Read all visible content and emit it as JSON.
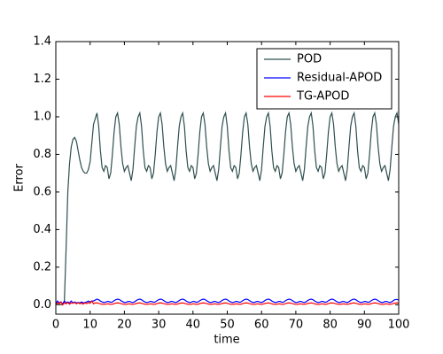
{
  "chart_data": {
    "type": "line",
    "xlabel": "time",
    "ylabel": "Error",
    "xlim": [
      0,
      100
    ],
    "xticks": [
      0,
      10,
      20,
      30,
      40,
      50,
      60,
      70,
      80,
      90,
      100
    ],
    "ylim": [
      -0.05,
      1.4
    ],
    "yticks": [
      {
        "value": 0,
        "label": "0.0"
      },
      0.2,
      0.4,
      0.6,
      0.8,
      {
        "value": 1,
        "label": "1.0"
      },
      1.2,
      1.4
    ],
    "legend": "upper right",
    "x": [
      0,
      0.5,
      1,
      1.5,
      2,
      2.5,
      3,
      3.5,
      4,
      4.5,
      5,
      5.5,
      6,
      6.5,
      7,
      7.5,
      8,
      8.5,
      9,
      9.5,
      10,
      10.5,
      11,
      11.5,
      12,
      12.5,
      13,
      13.5,
      14,
      14.5,
      15,
      15.5,
      16,
      16.5,
      17,
      17.5,
      18,
      18.5,
      19,
      19.5,
      20,
      20.5,
      21,
      21.5,
      22,
      22.5,
      23,
      23.5,
      24,
      24.5,
      25,
      25.5,
      26,
      26.5,
      27,
      27.5,
      28,
      28.5,
      29,
      29.5,
      30,
      30.5,
      31,
      31.5,
      32,
      32.5,
      33,
      33.5,
      34,
      34.5,
      35,
      35.5,
      36,
      36.5,
      37,
      37.5,
      38,
      38.5,
      39,
      39.5,
      40,
      40.5,
      41,
      41.5,
      42,
      42.5,
      43,
      43.5,
      44,
      44.5,
      45,
      45.5,
      46,
      46.5,
      47,
      47.5,
      48,
      48.5,
      49,
      49.5,
      50,
      50.5,
      51,
      51.5,
      52,
      52.5,
      53,
      53.5,
      54,
      54.5,
      55,
      55.5,
      56,
      56.5,
      57,
      57.5,
      58,
      58.5,
      59,
      59.5,
      60,
      60.5,
      61,
      61.5,
      62,
      62.5,
      63,
      63.5,
      64,
      64.5,
      65,
      65.5,
      66,
      66.5,
      67,
      67.5,
      68,
      68.5,
      69,
      69.5,
      70,
      70.5,
      71,
      71.5,
      72,
      72.5,
      73,
      73.5,
      74,
      74.5,
      75,
      75.5,
      76,
      76.5,
      77,
      77.5,
      78,
      78.5,
      79,
      79.5,
      80,
      80.5,
      81,
      81.5,
      82,
      82.5,
      83,
      83.5,
      84,
      84.5,
      85,
      85.5,
      86,
      86.5,
      87,
      87.5,
      88,
      88.5,
      89,
      89.5,
      90,
      90.5,
      91,
      91.5,
      92,
      92.5,
      93,
      93.5,
      94,
      94.5,
      95,
      95.5,
      96,
      96.5,
      97,
      97.5,
      98,
      98.5,
      99,
      99.5,
      100
    ],
    "series": [
      {
        "name": "POD",
        "color": "#2f4f4f",
        "values": [
          0,
          0,
          0,
          0,
          0,
          0.02,
          0.3,
          0.6,
          0.75,
          0.84,
          0.88,
          0.89,
          0.87,
          0.82,
          0.77,
          0.73,
          0.71,
          0.7,
          0.7,
          0.72,
          0.76,
          0.86,
          0.96,
          0.99,
          1.02,
          0.95,
          0.82,
          0.73,
          0.71,
          0.74,
          0.73,
          0.67,
          0.7,
          0.8,
          0.92,
          1.0,
          1.02,
          0.96,
          0.84,
          0.75,
          0.71,
          0.73,
          0.74,
          0.7,
          0.66,
          0.72,
          0.84,
          0.95,
          1.0,
          1.02,
          0.95,
          0.82,
          0.73,
          0.71,
          0.74,
          0.73,
          0.67,
          0.7,
          0.8,
          0.92,
          1.0,
          1.02,
          0.96,
          0.84,
          0.75,
          0.71,
          0.73,
          0.74,
          0.7,
          0.66,
          0.72,
          0.84,
          0.95,
          1.0,
          1.02,
          0.95,
          0.82,
          0.73,
          0.71,
          0.74,
          0.73,
          0.67,
          0.7,
          0.8,
          0.92,
          1.0,
          1.02,
          0.96,
          0.84,
          0.75,
          0.71,
          0.73,
          0.74,
          0.7,
          0.66,
          0.72,
          0.84,
          0.95,
          1.0,
          1.02,
          0.95,
          0.82,
          0.73,
          0.71,
          0.74,
          0.73,
          0.67,
          0.7,
          0.8,
          0.92,
          1.0,
          1.02,
          0.96,
          0.84,
          0.75,
          0.71,
          0.73,
          0.74,
          0.7,
          0.66,
          0.72,
          0.84,
          0.95,
          1.0,
          1.02,
          0.95,
          0.82,
          0.73,
          0.71,
          0.74,
          0.73,
          0.67,
          0.7,
          0.8,
          0.92,
          1.0,
          1.02,
          0.96,
          0.84,
          0.75,
          0.71,
          0.73,
          0.74,
          0.7,
          0.66,
          0.72,
          0.84,
          0.95,
          1.0,
          1.02,
          0.95,
          0.82,
          0.73,
          0.71,
          0.74,
          0.73,
          0.67,
          0.7,
          0.8,
          0.92,
          1.0,
          1.02,
          0.96,
          0.84,
          0.75,
          0.71,
          0.73,
          0.74,
          0.7,
          0.66,
          0.72,
          0.84,
          0.95,
          1.0,
          1.02,
          0.95,
          0.82,
          0.73,
          0.71,
          0.74,
          0.73,
          0.67,
          0.7,
          0.8,
          0.92,
          1.0,
          1.02,
          0.96,
          0.84,
          0.75,
          0.71,
          0.73,
          0.74,
          0.7,
          0.66,
          0.72,
          0.84,
          0.95,
          1.0,
          1.02,
          0.96
        ]
      },
      {
        "name": "Residual-APOD",
        "color": "#0000ff",
        "values": [
          0.005,
          0.02,
          0.01,
          0.015,
          0.005,
          0.02,
          0.01,
          0.015,
          0.01,
          0.02,
          0.01,
          0.015,
          0.01,
          0.012,
          0.01,
          0.015,
          0.01,
          0.012,
          0.015,
          0.02,
          0.015,
          0.02,
          0.02,
          0.025,
          0.03,
          0.027,
          0.02,
          0.015,
          0.012,
          0.014,
          0.018,
          0.017,
          0.013,
          0.015,
          0.022,
          0.027,
          0.03,
          0.028,
          0.022,
          0.016,
          0.012,
          0.013,
          0.017,
          0.018,
          0.014,
          0.012,
          0.016,
          0.023,
          0.028,
          0.03,
          0.027,
          0.02,
          0.015,
          0.012,
          0.014,
          0.018,
          0.017,
          0.013,
          0.015,
          0.022,
          0.027,
          0.03,
          0.028,
          0.022,
          0.016,
          0.012,
          0.013,
          0.017,
          0.018,
          0.014,
          0.012,
          0.016,
          0.023,
          0.028,
          0.03,
          0.027,
          0.02,
          0.015,
          0.012,
          0.014,
          0.018,
          0.017,
          0.013,
          0.015,
          0.022,
          0.027,
          0.03,
          0.028,
          0.022,
          0.016,
          0.012,
          0.013,
          0.017,
          0.018,
          0.014,
          0.012,
          0.016,
          0.023,
          0.028,
          0.03,
          0.027,
          0.02,
          0.015,
          0.012,
          0.014,
          0.018,
          0.017,
          0.013,
          0.015,
          0.022,
          0.027,
          0.03,
          0.028,
          0.022,
          0.016,
          0.012,
          0.013,
          0.017,
          0.018,
          0.014,
          0.012,
          0.016,
          0.023,
          0.028,
          0.03,
          0.027,
          0.02,
          0.015,
          0.012,
          0.014,
          0.018,
          0.017,
          0.013,
          0.015,
          0.022,
          0.027,
          0.03,
          0.028,
          0.022,
          0.016,
          0.012,
          0.013,
          0.017,
          0.018,
          0.014,
          0.012,
          0.016,
          0.023,
          0.028,
          0.03,
          0.027,
          0.02,
          0.015,
          0.012,
          0.014,
          0.018,
          0.017,
          0.013,
          0.015,
          0.022,
          0.027,
          0.03,
          0.028,
          0.022,
          0.016,
          0.012,
          0.013,
          0.017,
          0.018,
          0.014,
          0.012,
          0.016,
          0.023,
          0.028,
          0.03,
          0.027,
          0.02,
          0.015,
          0.012,
          0.014,
          0.018,
          0.017,
          0.013,
          0.015,
          0.022,
          0.027,
          0.03,
          0.028,
          0.022,
          0.016,
          0.012,
          0.013,
          0.017,
          0.018,
          0.014,
          0.012,
          0.016,
          0.023,
          0.028,
          0.028,
          0.026
        ]
      },
      {
        "name": "TG-APOD",
        "color": "#ff0000",
        "values": [
          0,
          0.01,
          0.005,
          0.015,
          0,
          0.01,
          0.005,
          0.012,
          0.003,
          0.01,
          0.008,
          0.012,
          0.005,
          0.01,
          0.006,
          0.008,
          0.004,
          0.01,
          0.006,
          0.012,
          0.008,
          0.02,
          0.005,
          0.01,
          0.01,
          0.008,
          0.005,
          0.003,
          0.002,
          0.003,
          0.005,
          0.004,
          0.002,
          0.003,
          0.006,
          0.009,
          0.01,
          0.009,
          0.006,
          0.004,
          0.002,
          0.002,
          0.004,
          0.005,
          0.003,
          0.002,
          0.004,
          0.007,
          0.009,
          0.01,
          0.008,
          0.005,
          0.003,
          0.002,
          0.003,
          0.005,
          0.004,
          0.002,
          0.003,
          0.006,
          0.009,
          0.01,
          0.009,
          0.006,
          0.004,
          0.002,
          0.002,
          0.004,
          0.005,
          0.003,
          0.002,
          0.004,
          0.007,
          0.009,
          0.01,
          0.008,
          0.005,
          0.003,
          0.002,
          0.003,
          0.005,
          0.004,
          0.002,
          0.003,
          0.006,
          0.009,
          0.01,
          0.009,
          0.006,
          0.004,
          0.002,
          0.002,
          0.004,
          0.005,
          0.003,
          0.002,
          0.004,
          0.007,
          0.009,
          0.01,
          0.008,
          0.005,
          0.003,
          0.002,
          0.003,
          0.005,
          0.004,
          0.002,
          0.003,
          0.006,
          0.009,
          0.01,
          0.009,
          0.006,
          0.004,
          0.002,
          0.002,
          0.004,
          0.005,
          0.003,
          0.002,
          0.004,
          0.007,
          0.009,
          0.01,
          0.008,
          0.005,
          0.003,
          0.002,
          0.003,
          0.005,
          0.004,
          0.002,
          0.003,
          0.006,
          0.009,
          0.01,
          0.009,
          0.006,
          0.004,
          0.002,
          0.002,
          0.004,
          0.005,
          0.003,
          0.002,
          0.004,
          0.007,
          0.009,
          0.01,
          0.008,
          0.005,
          0.003,
          0.002,
          0.003,
          0.005,
          0.004,
          0.002,
          0.003,
          0.006,
          0.009,
          0.01,
          0.009,
          0.006,
          0.004,
          0.002,
          0.002,
          0.004,
          0.005,
          0.003,
          0.002,
          0.004,
          0.007,
          0.009,
          0.01,
          0.008,
          0.005,
          0.003,
          0.002,
          0.003,
          0.005,
          0.004,
          0.002,
          0.003,
          0.006,
          0.009,
          0.01,
          0.009,
          0.006,
          0.004,
          0.002,
          0.002,
          0.004,
          0.005,
          0.003,
          0.002,
          0.004,
          0.007,
          0.009,
          0.01,
          0.009
        ]
      }
    ]
  }
}
